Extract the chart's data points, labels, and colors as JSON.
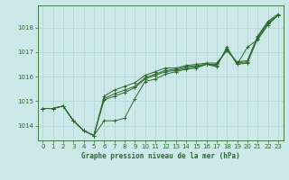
{
  "title": "Graphe pression niveau de la mer (hPa)",
  "bg_color": "#cce8e8",
  "grid_color": "#aad4d4",
  "line_color": "#2d6a2d",
  "marker_color": "#2d6a2d",
  "xlim": [
    -0.5,
    23.5
  ],
  "ylim": [
    1013.4,
    1018.9
  ],
  "yticks": [
    1014,
    1015,
    1016,
    1017,
    1018
  ],
  "xticks": [
    0,
    1,
    2,
    3,
    4,
    5,
    6,
    7,
    8,
    9,
    10,
    11,
    12,
    13,
    14,
    15,
    16,
    17,
    18,
    19,
    20,
    21,
    22,
    23
  ],
  "series": [
    [
      1014.7,
      1014.7,
      1014.8,
      1014.2,
      1013.8,
      1013.6,
      1014.2,
      1014.2,
      1014.3,
      1015.1,
      1015.8,
      1015.9,
      1016.1,
      1016.2,
      1016.3,
      1016.35,
      1016.5,
      1016.4,
      1017.2,
      1016.5,
      1017.2,
      1017.5,
      1018.1,
      1018.5
    ],
    [
      1014.7,
      1014.7,
      1014.8,
      1014.2,
      1013.8,
      1013.6,
      1015.05,
      1015.2,
      1015.35,
      1015.55,
      1015.9,
      1016.05,
      1016.2,
      1016.25,
      1016.35,
      1016.4,
      1016.5,
      1016.45,
      1017.15,
      1016.5,
      1016.55,
      1017.55,
      1018.15,
      1018.5
    ],
    [
      1014.7,
      1014.7,
      1014.8,
      1014.2,
      1013.8,
      1013.6,
      1015.1,
      1015.3,
      1015.45,
      1015.6,
      1015.95,
      1016.1,
      1016.25,
      1016.3,
      1016.4,
      1016.45,
      1016.5,
      1016.5,
      1017.1,
      1016.55,
      1016.6,
      1017.6,
      1018.2,
      1018.5
    ],
    [
      1014.7,
      1014.7,
      1014.8,
      1014.2,
      1013.8,
      1013.6,
      1015.2,
      1015.45,
      1015.6,
      1015.75,
      1016.05,
      1016.2,
      1016.35,
      1016.35,
      1016.45,
      1016.5,
      1016.55,
      1016.55,
      1017.05,
      1016.6,
      1016.65,
      1017.65,
      1018.25,
      1018.55
    ]
  ]
}
